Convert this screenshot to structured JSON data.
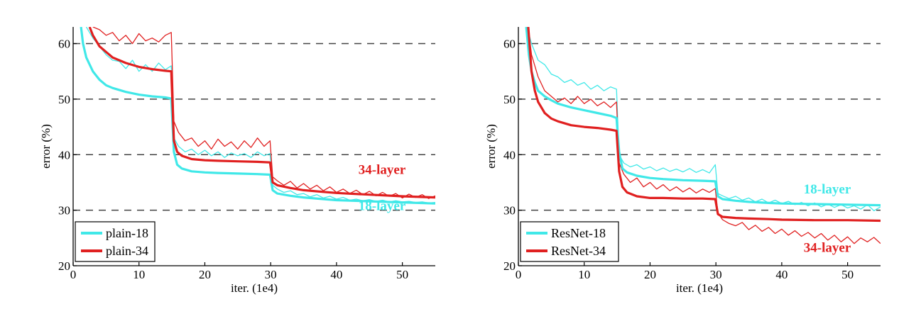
{
  "chart_data": [
    {
      "type": "line",
      "xlabel": "iter. (1e4)",
      "ylabel": "error (%)",
      "xlim": [
        0,
        55
      ],
      "ylim": [
        20,
        63
      ],
      "xticks": [
        0,
        10,
        20,
        30,
        40,
        50
      ],
      "yticks": [
        20,
        30,
        40,
        50,
        60
      ],
      "grid": "dashed horizontal",
      "legend_position": "bottom-left",
      "legend": [
        "plain-18",
        "plain-34"
      ],
      "annotations": [
        {
          "text": "34-layer",
          "color": "#e02020",
          "x": 50.5,
          "y": 36.5
        },
        {
          "text": "18-layer",
          "color": "#40e8e8",
          "x": 50.5,
          "y": 30.0
        }
      ],
      "series": [
        {
          "name": "plain-18",
          "color": "#40e8e8",
          "width": 3.2,
          "x": [
            1.2,
            1.5,
            2,
            3,
            4,
            5,
            6,
            8,
            10,
            12,
            14,
            14.9,
            15.3,
            15.8,
            16.5,
            18,
            20,
            22,
            25,
            28,
            29.9,
            30.3,
            31,
            33,
            35,
            38,
            40,
            45,
            50,
            55
          ],
          "y": [
            63,
            60,
            57.5,
            55,
            53.5,
            52.5,
            52,
            51.3,
            50.8,
            50.5,
            50.3,
            50.1,
            40.5,
            38.2,
            37.5,
            37,
            36.8,
            36.7,
            36.6,
            36.5,
            36.4,
            33.6,
            33.0,
            32.6,
            32.3,
            32.0,
            31.8,
            31.6,
            31.4,
            31.2
          ]
        },
        {
          "name": "plain-34",
          "color": "#e02020",
          "width": 3.2,
          "x": [
            2.5,
            3,
            4,
            5,
            6,
            8,
            10,
            12,
            14,
            14.9,
            15.3,
            15.8,
            16.5,
            18,
            20,
            22,
            25,
            28,
            29.9,
            30.3,
            31,
            33,
            35,
            38,
            40,
            45,
            50,
            55
          ],
          "y": [
            63,
            61.5,
            59.5,
            58.5,
            57.5,
            56.5,
            55.8,
            55.4,
            55.1,
            55,
            42.5,
            40.5,
            39.8,
            39.2,
            39,
            38.9,
            38.8,
            38.7,
            38.6,
            35.0,
            34.5,
            34.0,
            33.6,
            33.3,
            33.1,
            32.8,
            32.5,
            32.3
          ]
        },
        {
          "name": "",
          "color": "#40e8e8",
          "width": 1.3,
          "x": [
            2,
            3,
            4,
            5,
            6,
            7,
            8,
            9,
            10,
            11,
            12,
            13,
            14,
            14.9,
            15.3,
            16,
            17,
            18,
            19,
            20,
            21,
            22,
            23,
            24,
            25,
            26,
            27,
            28,
            29,
            29.9,
            30.3,
            31,
            32,
            33,
            34,
            35,
            36,
            37,
            38,
            39,
            40,
            41,
            42,
            43,
            44,
            45,
            46,
            47,
            48,
            49,
            50,
            51,
            52,
            53,
            54,
            55
          ],
          "y": [
            63,
            61,
            59.5,
            58,
            57,
            56.8,
            55.5,
            57,
            55,
            56.2,
            55,
            56.5,
            55.3,
            56,
            43,
            41.5,
            40.5,
            41,
            40,
            40.8,
            39.8,
            40.5,
            39.5,
            40.3,
            39.8,
            40.2,
            39.5,
            40.5,
            39.8,
            40.2,
            34.5,
            33.8,
            33.2,
            33.5,
            32.8,
            33,
            32.4,
            32.8,
            32.2,
            32.5,
            32,
            32.3,
            31.8,
            32,
            31.7,
            31.9,
            31.6,
            31.8,
            31.5,
            31.7,
            31.5,
            31.6,
            31.4,
            31.5,
            31.3,
            31.4
          ]
        },
        {
          "name": "",
          "color": "#e02020",
          "width": 1.3,
          "x": [
            3,
            4,
            5,
            6,
            7,
            8,
            9,
            10,
            11,
            12,
            13,
            14,
            14.9,
            15.3,
            16,
            17,
            18,
            19,
            20,
            21,
            22,
            23,
            24,
            25,
            26,
            27,
            28,
            29,
            29.9,
            30.3,
            31,
            32,
            33,
            34,
            35,
            36,
            37,
            38,
            39,
            40,
            41,
            42,
            43,
            44,
            45,
            46,
            47,
            48,
            49,
            50,
            51,
            52,
            53,
            54,
            55
          ],
          "y": [
            63,
            62.5,
            61.5,
            62,
            60.5,
            61.5,
            60,
            61.8,
            60.5,
            61,
            60.3,
            61.5,
            62,
            46,
            44,
            42.5,
            43,
            41.5,
            42.5,
            41,
            42.8,
            41.5,
            42.3,
            41,
            42.5,
            41.3,
            43,
            41.5,
            42.5,
            36,
            35.3,
            34.5,
            35.2,
            34,
            34.8,
            33.8,
            34.5,
            33.5,
            34.2,
            33.2,
            33.8,
            33,
            33.6,
            32.8,
            33.4,
            32.6,
            33.2,
            32.5,
            33.0,
            32.2,
            32.9,
            32.3,
            32.8,
            32.1,
            32.6
          ]
        }
      ]
    },
    {
      "type": "line",
      "xlabel": "iter. (1e4)",
      "ylabel": "error (%)",
      "xlim": [
        0,
        55
      ],
      "ylim": [
        20,
        63
      ],
      "xticks": [
        0,
        10,
        20,
        30,
        40,
        50
      ],
      "yticks": [
        20,
        30,
        40,
        50,
        60
      ],
      "grid": "dashed horizontal",
      "legend_position": "bottom-left",
      "legend": [
        "ResNet-18",
        "ResNet-34"
      ],
      "annotations": [
        {
          "text": "18-layer",
          "color": "#40e8e8",
          "x": 50.5,
          "y": 33.0
        },
        {
          "text": "34-layer",
          "color": "#e02020",
          "x": 50.5,
          "y": 22.5
        }
      ],
      "series": [
        {
          "name": "ResNet-18",
          "color": "#40e8e8",
          "width": 3.2,
          "x": [
            1.2,
            1.6,
            2,
            2.5,
            3,
            4,
            5,
            6,
            8,
            10,
            12,
            14,
            14.9,
            15.3,
            15.8,
            16.5,
            18,
            20,
            22,
            25,
            28,
            29.9,
            30.3,
            31,
            33,
            35,
            38,
            40,
            45,
            50,
            55
          ],
          "y": [
            63,
            58,
            55,
            53,
            51.5,
            50.5,
            49.8,
            49.2,
            48.5,
            48,
            47.5,
            47,
            46.6,
            40.5,
            37.5,
            36.8,
            36.2,
            35.8,
            35.6,
            35.4,
            35.3,
            35.2,
            32.5,
            32.0,
            31.7,
            31.5,
            31.3,
            31.2,
            31.1,
            31.0,
            30.9
          ]
        },
        {
          "name": "ResNet-34",
          "color": "#e02020",
          "width": 3.2,
          "x": [
            1.5,
            2,
            2.5,
            3,
            4,
            5,
            6,
            8,
            10,
            12,
            14,
            14.9,
            15.3,
            15.8,
            16.5,
            18,
            20,
            22,
            25,
            28,
            29.9,
            30.3,
            31,
            33,
            35,
            38,
            40,
            45,
            50,
            55
          ],
          "y": [
            63,
            55,
            51.5,
            49.5,
            47.5,
            46.5,
            46,
            45.3,
            45,
            44.8,
            44.5,
            44.3,
            37,
            34.2,
            33.2,
            32.5,
            32.2,
            32.2,
            32.1,
            32.1,
            32.0,
            29.3,
            28.8,
            28.6,
            28.5,
            28.4,
            28.3,
            28.2,
            28.2,
            28.1
          ]
        },
        {
          "name": "",
          "color": "#40e8e8",
          "width": 1.3,
          "x": [
            1.3,
            2,
            3,
            4,
            5,
            6,
            7,
            8,
            9,
            10,
            11,
            12,
            13,
            14,
            14.9,
            15.3,
            16,
            17,
            18,
            19,
            20,
            21,
            22,
            23,
            24,
            25,
            26,
            27,
            28,
            29,
            29.9,
            30.3,
            31,
            32,
            33,
            34,
            35,
            36,
            37,
            38,
            39,
            40,
            41,
            42,
            43,
            44,
            45,
            46,
            47,
            48,
            49,
            50,
            51,
            52,
            53,
            54,
            55
          ],
          "y": [
            63,
            60,
            57,
            56.2,
            54.5,
            54,
            53,
            53.5,
            52.5,
            53,
            51.8,
            52.5,
            51.5,
            52.2,
            51.8,
            40,
            38.5,
            37.8,
            38.2,
            37.4,
            37.8,
            37.1,
            37.6,
            37,
            37.4,
            36.9,
            37.5,
            36.8,
            37.3,
            36.7,
            38.2,
            33,
            32.6,
            32.1,
            32.5,
            31.8,
            32.2,
            31.5,
            32,
            31.3,
            31.8,
            31.2,
            31.6,
            31,
            31.4,
            30.8,
            31.3,
            30.6,
            31.1,
            30.5,
            31,
            30.4,
            30.8,
            30.2,
            31.0,
            29.9,
            30.6
          ]
        },
        {
          "name": "",
          "color": "#e02020",
          "width": 1.3,
          "x": [
            1.5,
            2,
            3,
            4,
            5,
            6,
            7,
            8,
            9,
            10,
            11,
            12,
            13,
            14,
            14.9,
            15.3,
            16,
            17,
            18,
            19,
            20,
            21,
            22,
            23,
            24,
            25,
            26,
            27,
            28,
            29,
            29.9,
            30.3,
            31,
            32,
            33,
            34,
            35,
            36,
            37,
            38,
            39,
            40,
            41,
            42,
            43,
            44,
            45,
            46,
            47,
            48,
            49,
            50,
            51,
            52,
            53,
            54,
            55
          ],
          "y": [
            63,
            58,
            54,
            51.5,
            50.5,
            49.5,
            50.2,
            49.2,
            50.5,
            49.2,
            50,
            48.8,
            49.5,
            48.5,
            49.5,
            38.5,
            36.5,
            35,
            35.8,
            34.2,
            35,
            33.8,
            34.6,
            33.5,
            34.2,
            33.3,
            34,
            33.1,
            33.8,
            33.2,
            33.9,
            29.5,
            28.3,
            27.6,
            27.2,
            27.8,
            26.5,
            27.3,
            26.2,
            26.9,
            25.8,
            26.6,
            25.5,
            26.3,
            25.3,
            26.0,
            25.0,
            25.8,
            24.6,
            25.5,
            24.3,
            25.2,
            24.0,
            25.0,
            24.3,
            25.1,
            24.0
          ]
        }
      ]
    }
  ]
}
